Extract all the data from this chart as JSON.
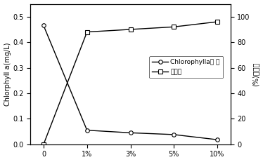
{
  "x_labels": [
    "0",
    "1%",
    "3%",
    "5%",
    "10%"
  ],
  "x_positions": [
    0,
    1,
    2,
    3,
    4
  ],
  "chlorophyll_values": [
    0.465,
    0.055,
    0.045,
    0.038,
    0.018
  ],
  "inhibition_pct": [
    0,
    88,
    90,
    92,
    96
  ],
  "ylabel_left": "Chlorphyll a (mg/L)",
  "ylabel_right": "(%)抑藻率",
  "ylim_left": [
    0.0,
    0.55
  ],
  "ylim_right": [
    0,
    110
  ],
  "yticks_left": [
    0.0,
    0.1,
    0.2,
    0.3,
    0.4,
    0.5
  ],
  "yticks_right": [
    0,
    20,
    40,
    60,
    80,
    100
  ],
  "legend_chlorophyll": "Chlorophylla浓 度",
  "legend_inhibition": "抑藻率",
  "line_color": "black",
  "bg_color": "white",
  "marker_circle": "o",
  "marker_square": "s",
  "markersize": 4,
  "linewidth": 1.0,
  "tick_fontsize": 7,
  "label_fontsize": 7,
  "legend_fontsize": 6.5
}
